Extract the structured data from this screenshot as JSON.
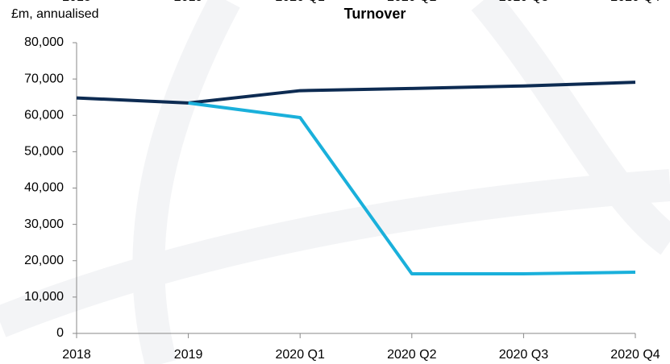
{
  "chart_data": {
    "type": "line",
    "title": "Turnover",
    "y_label": "£m, annualised",
    "categories": [
      "2018",
      "2019",
      "2020 Q1",
      "2020 Q2",
      "2020 Q3",
      "2020 Q4"
    ],
    "series": [
      {
        "color": "#0d2b52",
        "values": [
          64800,
          63400,
          66800,
          67400,
          68100,
          69100
        ]
      },
      {
        "color": "#1ab0db",
        "values": [
          null,
          63400,
          59400,
          16400,
          16400,
          16850
        ]
      }
    ],
    "ylim": [
      0,
      80000
    ],
    "yticks": [
      0,
      {
        "value": 10000,
        "label": "10,000"
      },
      {
        "value": 20000,
        "label": "20,000"
      },
      {
        "value": 30000,
        "label": "30,000"
      },
      {
        "value": 40000,
        "label": "40,000"
      },
      {
        "value": 50000,
        "label": "50,000"
      },
      {
        "value": 60000,
        "label": "60,000"
      },
      {
        "value": 70000,
        "label": "70,000"
      },
      {
        "value": 80000,
        "label": "80,000"
      }
    ]
  }
}
